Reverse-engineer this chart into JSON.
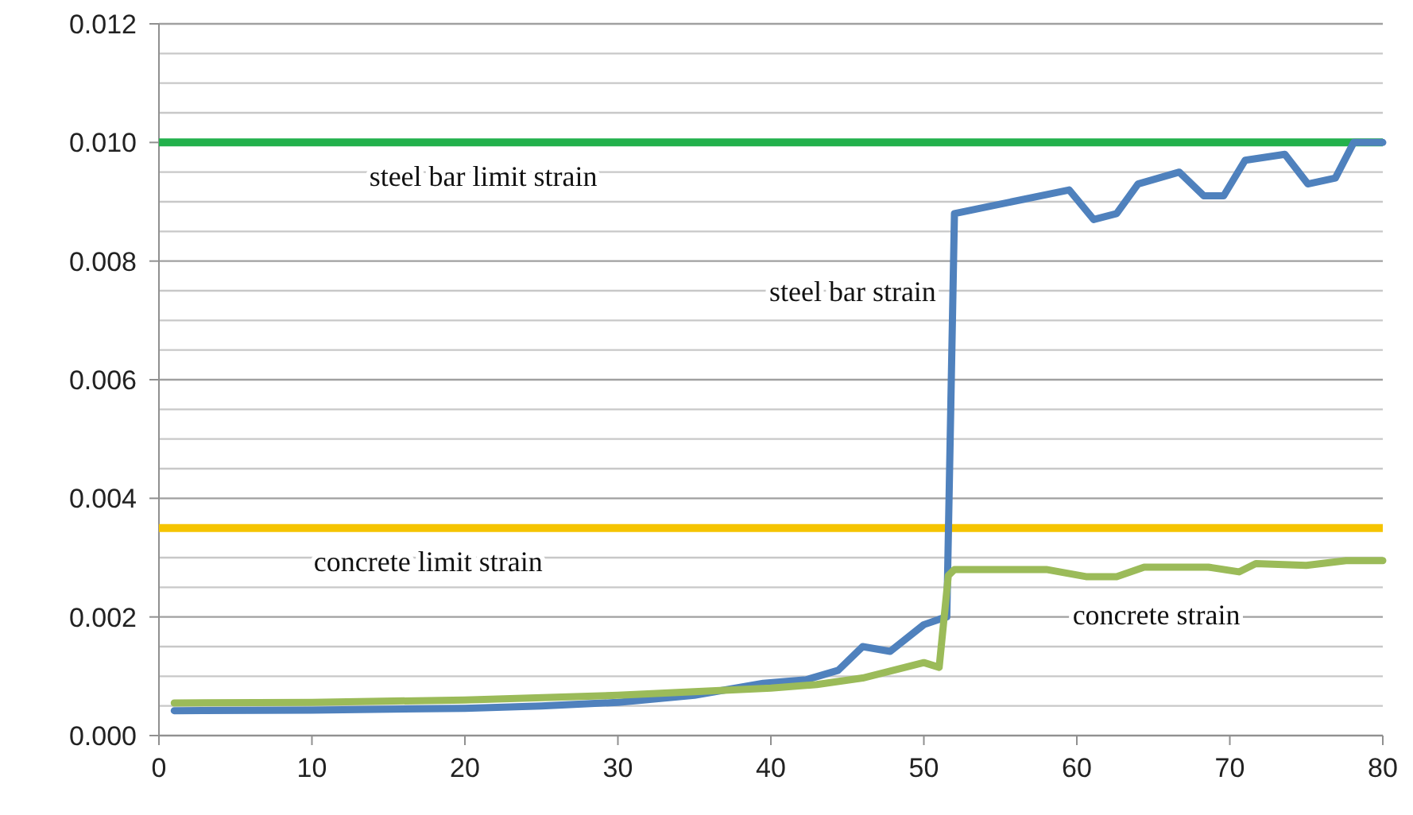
{
  "chart_data": {
    "type": "line",
    "xlim": [
      0,
      80
    ],
    "xticks": [
      0,
      10,
      20,
      30,
      40,
      50,
      60,
      70,
      80
    ],
    "ylim": [
      0,
      0.012
    ],
    "yticks": [
      {
        "value": 0,
        "label": "0.000"
      },
      {
        "value": 0.0005,
        "label": null
      },
      {
        "value": 0.001,
        "label": null
      },
      {
        "value": 0.0015,
        "label": null
      },
      {
        "value": 0.002,
        "label": "0.002"
      },
      {
        "value": 0.0025,
        "label": null
      },
      {
        "value": 0.003,
        "label": null
      },
      {
        "value": 0.0035,
        "label": null
      },
      {
        "value": 0.004,
        "label": "0.004"
      },
      {
        "value": 0.0045,
        "label": null
      },
      {
        "value": 0.005,
        "label": null
      },
      {
        "value": 0.0055,
        "label": null
      },
      {
        "value": 0.006,
        "label": "0.006"
      },
      {
        "value": 0.0065,
        "label": null
      },
      {
        "value": 0.007,
        "label": null
      },
      {
        "value": 0.0075,
        "label": null
      },
      {
        "value": 0.008,
        "label": "0.008"
      },
      {
        "value": 0.0085,
        "label": null
      },
      {
        "value": 0.009,
        "label": null
      },
      {
        "value": 0.0095,
        "label": null
      },
      {
        "value": 0.01,
        "label": "0.010"
      },
      {
        "value": 0.0105,
        "label": null
      },
      {
        "value": 0.011,
        "label": null
      },
      {
        "value": 0.0115,
        "label": null
      },
      {
        "value": 0.012,
        "label": "0.012"
      }
    ],
    "grid": "y",
    "line_style": "solid",
    "series": [
      {
        "name": "steel bar strain",
        "color": "#4f81bd",
        "x": [
          1,
          10,
          20,
          25,
          30,
          35,
          39.5,
          42.3,
          44.4,
          46,
          47.8,
          50,
          51,
          51.5,
          52,
          59.5,
          61.1,
          62.6,
          64,
          66.7,
          68.3,
          69.6,
          71,
          73.6,
          75.1,
          76.9,
          78.1,
          80
        ],
        "values": [
          0.00042,
          0.00043,
          0.00046,
          0.0005,
          0.00056,
          0.00068,
          0.00088,
          0.00094,
          0.0011,
          0.0015,
          0.00142,
          0.00187,
          0.00196,
          0.002,
          0.0088,
          0.0092,
          0.0087,
          0.0088,
          0.0093,
          0.0095,
          0.0091,
          0.0091,
          0.0097,
          0.0098,
          0.0093,
          0.0094,
          0.01,
          0.01
        ]
      },
      {
        "name": "concrete strain",
        "color": "#9bbb59",
        "x": [
          1,
          10,
          20,
          30,
          35,
          40,
          43,
          46,
          50,
          51,
          51.6,
          52,
          58,
          60.6,
          62.6,
          64.4,
          68.6,
          70.6,
          71.7,
          75,
          77.6,
          80
        ],
        "values": [
          0.00055,
          0.00056,
          0.0006,
          0.00068,
          0.00074,
          0.0008,
          0.00086,
          0.00097,
          0.00123,
          0.00115,
          0.0027,
          0.0028,
          0.0028,
          0.00268,
          0.00268,
          0.00284,
          0.00284,
          0.00276,
          0.0029,
          0.00287,
          0.00295,
          0.00295
        ]
      }
    ],
    "ref_lines": [
      {
        "axis": "y",
        "value": 0.01,
        "label": "steel bar limit strain",
        "color": "#22b14c"
      },
      {
        "axis": "y",
        "value": 0.0035,
        "label": "concrete limit strain",
        "color": "#f5c400"
      }
    ]
  }
}
